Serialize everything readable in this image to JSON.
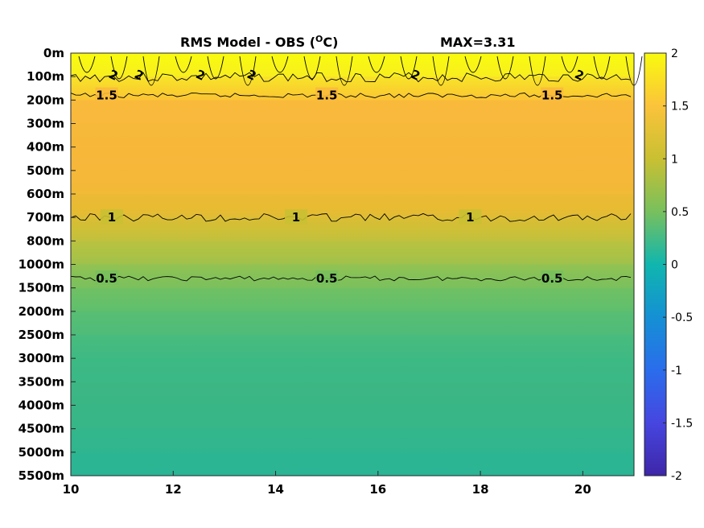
{
  "chart_data": {
    "type": "heatmap",
    "title": "RMS Model - OBS (",
    "title_unit_super": "O",
    "title_unit_tail": "C)",
    "max_label": "MAX=3.31",
    "x_ticks": [
      10,
      12,
      14,
      16,
      18,
      20
    ],
    "x_tick_labels": [
      "10",
      "12",
      "14",
      "16",
      "18",
      "20"
    ],
    "xlim": [
      10,
      21
    ],
    "y_tick_labels": [
      "0m",
      "100m",
      "200m",
      "300m",
      "400m",
      "500m",
      "600m",
      "700m",
      "800m",
      "1000m",
      "1500m",
      "2000m",
      "2500m",
      "3000m",
      "3500m",
      "4000m",
      "4500m",
      "5000m",
      "5500m"
    ],
    "y_levels": [
      0,
      100,
      200,
      300,
      400,
      500,
      600,
      700,
      800,
      1000,
      1500,
      2000,
      2500,
      3000,
      3500,
      4000,
      4500,
      5000,
      5500
    ],
    "y_axis_reversed": true,
    "colorbar": {
      "range": [
        -2,
        2
      ],
      "ticks": [
        2,
        1.5,
        1,
        0.5,
        0,
        -0.5,
        -1,
        -1.5,
        -2
      ],
      "tick_labels": [
        "2",
        "1.5",
        "1",
        "0.5",
        "0",
        "-0.5",
        "-1",
        "-1.5",
        "-2"
      ],
      "colormap": "parula"
    },
    "values_by_level": [
      2.1,
      2.0,
      1.5,
      1.4,
      1.4,
      1.4,
      1.3,
      1.15,
      1.0,
      0.85,
      0.55,
      0.45,
      0.35,
      0.3,
      0.3,
      0.35,
      0.3,
      0.25,
      0.2
    ],
    "contours": [
      {
        "level": 2.0,
        "labels": [
          "2",
          "2",
          "2",
          "2",
          "2",
          "2"
        ],
        "label_x": [
          10.8,
          11.3,
          12.5,
          13.5,
          16.7,
          19.9
        ]
      },
      {
        "level": 1.5,
        "labels": [
          "1.5",
          "1.5",
          "1.5"
        ],
        "label_x": [
          10.7,
          15.0,
          19.4
        ],
        "depth_index": 1.8
      },
      {
        "level": 1.0,
        "labels": [
          "1",
          "1",
          "1"
        ],
        "label_x": [
          10.8,
          14.4,
          17.8
        ],
        "depth_index": 7.0
      },
      {
        "level": 0.5,
        "labels": [
          "0.5",
          "0.5",
          "0.5"
        ],
        "label_x": [
          10.7,
          15.0,
          19.4
        ],
        "depth_index": 9.6
      }
    ]
  }
}
